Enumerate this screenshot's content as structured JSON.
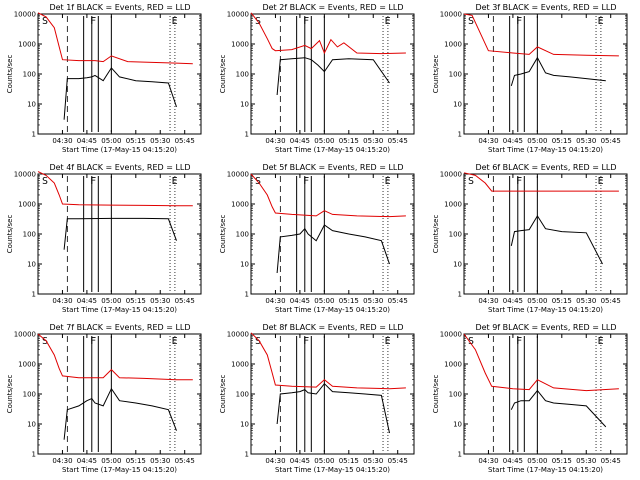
{
  "figure": {
    "x_ticks": [
      "04:30",
      "04:45",
      "05:00",
      "05:15",
      "05:30",
      "05:45"
    ],
    "y_ticks": [
      "1",
      "10",
      "100",
      "1000",
      "10000"
    ],
    "colors": {
      "events": "#000000",
      "lld": "#e00000"
    }
  },
  "chart_data": [
    {
      "type": "line",
      "title": "Det 1f BLACK = Events, RED = LLD",
      "xlabel": "Start Time (17-May-15 04:15:20)",
      "ylabel": "Counts/sec",
      "ylim": [
        1,
        10000
      ],
      "yscale": "log",
      "xlim": [
        "04:15",
        "05:55"
      ],
      "markers": [
        "S",
        "F",
        "E"
      ],
      "series": [
        {
          "color": "red",
          "x": [
            "04:15",
            "04:20",
            "04:25",
            "04:28",
            "04:30",
            "04:40",
            "04:50",
            "04:55",
            "05:00",
            "05:10",
            "05:20",
            "05:30",
            "05:40",
            "05:50"
          ],
          "y": [
            11000,
            8000,
            3500,
            800,
            300,
            280,
            280,
            260,
            400,
            260,
            250,
            240,
            230,
            220
          ]
        },
        {
          "color": "black",
          "x": [
            "04:31",
            "04:33",
            "04:40",
            "04:45",
            "04:48",
            "04:50",
            "04:55",
            "05:00",
            "05:05",
            "05:15",
            "05:25",
            "05:35",
            "05:40"
          ],
          "y": [
            3,
            70,
            70,
            75,
            80,
            90,
            60,
            160,
            80,
            60,
            55,
            50,
            8
          ]
        }
      ]
    },
    {
      "type": "line",
      "title": "Det 2f BLACK = Events, RED = LLD",
      "xlabel": "Start Time (17-May-15 04:15:20)",
      "ylabel": "Counts/sec",
      "ylim": [
        1,
        10000
      ],
      "yscale": "log",
      "xlim": [
        "04:15",
        "05:55"
      ],
      "markers": [
        "S",
        "F",
        "E"
      ],
      "series": [
        {
          "color": "red",
          "x": [
            "04:15",
            "04:20",
            "04:25",
            "04:28",
            "04:30",
            "04:40",
            "04:48",
            "04:52",
            "04:57",
            "05:00",
            "05:04",
            "05:08",
            "05:12",
            "05:20",
            "05:35",
            "05:50"
          ],
          "y": [
            11000,
            5000,
            1500,
            700,
            600,
            650,
            900,
            700,
            1300,
            500,
            1400,
            800,
            1100,
            500,
            480,
            500
          ]
        },
        {
          "color": "black",
          "x": [
            "04:31",
            "04:33",
            "04:40",
            "04:48",
            "04:52",
            "04:56",
            "05:00",
            "05:05",
            "05:15",
            "05:30",
            "05:40"
          ],
          "y": [
            20,
            300,
            320,
            350,
            300,
            200,
            120,
            300,
            320,
            300,
            50
          ]
        }
      ]
    },
    {
      "type": "line",
      "title": "Det 3f BLACK = Events, RED = LLD",
      "xlabel": "Start Time (17-May-15 04:15:20)",
      "ylabel": "Counts/sec",
      "ylim": [
        1,
        10000
      ],
      "yscale": "log",
      "xlim": [
        "04:15",
        "05:55"
      ],
      "markers": [
        "S",
        "F",
        "E"
      ],
      "series": [
        {
          "color": "red",
          "x": [
            "04:15",
            "04:20",
            "04:30",
            "04:45",
            "04:55",
            "05:00",
            "05:10",
            "05:30",
            "05:50"
          ],
          "y": [
            10000,
            9000,
            600,
            500,
            450,
            800,
            450,
            420,
            400
          ]
        },
        {
          "color": "black",
          "x": [
            "04:44",
            "04:46",
            "04:50",
            "04:55",
            "05:00",
            "05:05",
            "05:10",
            "05:20",
            "05:30",
            "05:42"
          ],
          "y": [
            40,
            90,
            100,
            120,
            350,
            110,
            90,
            80,
            70,
            60
          ]
        }
      ]
    },
    {
      "type": "line",
      "title": "Det 4f BLACK = Events, RED = LLD",
      "xlabel": "Start Time (17-May-15 04:15:20)",
      "ylabel": "Counts/sec",
      "ylim": [
        1,
        10000
      ],
      "yscale": "log",
      "xlim": [
        "04:15",
        "05:55"
      ],
      "markers": [
        "S",
        "F",
        "E"
      ],
      "series": [
        {
          "color": "red",
          "x": [
            "04:15",
            "04:20",
            "04:25",
            "04:28",
            "04:30",
            "04:40",
            "05:00",
            "05:20",
            "05:40",
            "05:50"
          ],
          "y": [
            12000,
            9000,
            5000,
            2000,
            1000,
            950,
            920,
            900,
            880,
            870
          ]
        },
        {
          "color": "black",
          "x": [
            "04:31",
            "04:33",
            "04:40",
            "05:00",
            "05:20",
            "05:35",
            "05:40"
          ],
          "y": [
            30,
            320,
            320,
            330,
            330,
            320,
            60
          ]
        }
      ]
    },
    {
      "type": "line",
      "title": "Det 5f BLACK = Events, RED = LLD",
      "xlabel": "Start Time (17-May-15 04:15:20)",
      "ylabel": "Counts/sec",
      "ylim": [
        1,
        10000
      ],
      "yscale": "log",
      "xlim": [
        "04:15",
        "05:55"
      ],
      "markers": [
        "S",
        "F",
        "E"
      ],
      "series": [
        {
          "color": "red",
          "x": [
            "04:15",
            "04:20",
            "04:25",
            "04:28",
            "04:30",
            "04:40",
            "04:55",
            "05:00",
            "05:05",
            "05:20",
            "05:40",
            "05:50"
          ],
          "y": [
            10000,
            5000,
            2000,
            800,
            500,
            450,
            400,
            600,
            450,
            400,
            380,
            400
          ]
        },
        {
          "color": "black",
          "x": [
            "04:31",
            "04:33",
            "04:40",
            "04:45",
            "04:48",
            "04:50",
            "04:55",
            "05:00",
            "05:05",
            "05:15",
            "05:25",
            "05:35",
            "05:40"
          ],
          "y": [
            5,
            80,
            90,
            100,
            150,
            100,
            60,
            200,
            130,
            100,
            80,
            60,
            10
          ]
        }
      ]
    },
    {
      "type": "line",
      "title": "Det 6f BLACK = Events, RED = LLD",
      "xlabel": "Start Time (17-May-15 04:15:20)",
      "ylabel": "Counts/sec",
      "ylim": [
        1,
        10000
      ],
      "yscale": "log",
      "xlim": [
        "04:15",
        "05:55"
      ],
      "markers": [
        "S",
        "F",
        "E"
      ],
      "series": [
        {
          "color": "red",
          "x": [
            "04:15",
            "04:22",
            "04:28",
            "04:32",
            "04:45",
            "05:00",
            "05:20",
            "05:40",
            "05:50"
          ],
          "y": [
            11000,
            9000,
            5000,
            2700,
            2700,
            2700,
            2700,
            2700,
            2700
          ]
        },
        {
          "color": "black",
          "x": [
            "04:44",
            "04:46",
            "04:50",
            "04:55",
            "05:00",
            "05:05",
            "05:15",
            "05:30",
            "05:40"
          ],
          "y": [
            40,
            120,
            130,
            140,
            400,
            150,
            120,
            110,
            10
          ]
        }
      ]
    },
    {
      "type": "line",
      "title": "Det 7f BLACK = Events, RED = LLD",
      "xlabel": "Start Time (17-May-15 04:15:20)",
      "ylabel": "Counts/sec",
      "ylim": [
        1,
        10000
      ],
      "yscale": "log",
      "xlim": [
        "04:15",
        "05:55"
      ],
      "markers": [
        "S",
        "F",
        "E"
      ],
      "series": [
        {
          "color": "red",
          "x": [
            "04:15",
            "04:20",
            "04:25",
            "04:28",
            "04:30",
            "04:40",
            "04:55",
            "05:00",
            "05:05",
            "05:20",
            "05:40",
            "05:50"
          ],
          "y": [
            10000,
            6000,
            2000,
            700,
            400,
            350,
            350,
            650,
            350,
            330,
            300,
            300
          ]
        },
        {
          "color": "black",
          "x": [
            "04:31",
            "04:33",
            "04:40",
            "04:45",
            "04:48",
            "04:50",
            "04:55",
            "05:00",
            "05:05",
            "05:15",
            "05:25",
            "05:35",
            "05:40"
          ],
          "y": [
            3,
            30,
            40,
            60,
            70,
            50,
            40,
            150,
            60,
            50,
            40,
            30,
            6
          ]
        }
      ]
    },
    {
      "type": "line",
      "title": "Det 8f BLACK = Events, RED = LLD",
      "xlabel": "Start Time (17-May-15 04:15:20)",
      "ylabel": "Counts/sec",
      "ylim": [
        1,
        10000
      ],
      "yscale": "log",
      "xlim": [
        "04:15",
        "05:55"
      ],
      "markers": [
        "S",
        "F",
        "E"
      ],
      "series": [
        {
          "color": "red",
          "x": [
            "04:15",
            "04:20",
            "04:25",
            "04:28",
            "04:30",
            "04:40",
            "04:55",
            "05:00",
            "05:05",
            "05:20",
            "05:40",
            "05:50"
          ],
          "y": [
            11000,
            6000,
            2000,
            500,
            200,
            180,
            170,
            300,
            180,
            160,
            150,
            160
          ]
        },
        {
          "color": "black",
          "x": [
            "04:31",
            "04:33",
            "04:40",
            "04:45",
            "04:48",
            "04:50",
            "04:55",
            "05:00",
            "05:05",
            "05:15",
            "05:25",
            "05:35",
            "05:40"
          ],
          "y": [
            10,
            100,
            110,
            120,
            140,
            110,
            100,
            220,
            120,
            110,
            100,
            90,
            5
          ]
        }
      ]
    },
    {
      "type": "line",
      "title": "Det 9f BLACK = Events, RED = LLD",
      "xlabel": "Start Time (17-May-15 04:15:20)",
      "ylabel": "Counts/sec",
      "ylim": [
        1,
        10000
      ],
      "yscale": "log",
      "xlim": [
        "04:15",
        "05:55"
      ],
      "markers": [
        "S",
        "F",
        "E"
      ],
      "series": [
        {
          "color": "red",
          "x": [
            "04:15",
            "04:22",
            "04:28",
            "04:32",
            "04:45",
            "04:55",
            "05:00",
            "05:10",
            "05:30",
            "05:50"
          ],
          "y": [
            10000,
            3000,
            500,
            180,
            150,
            140,
            300,
            160,
            130,
            150
          ]
        },
        {
          "color": "black",
          "x": [
            "04:44",
            "04:46",
            "04:50",
            "04:55",
            "05:00",
            "05:05",
            "05:10",
            "05:20",
            "05:30",
            "05:42"
          ],
          "y": [
            30,
            50,
            60,
            60,
            130,
            60,
            50,
            45,
            40,
            8
          ]
        }
      ]
    }
  ]
}
